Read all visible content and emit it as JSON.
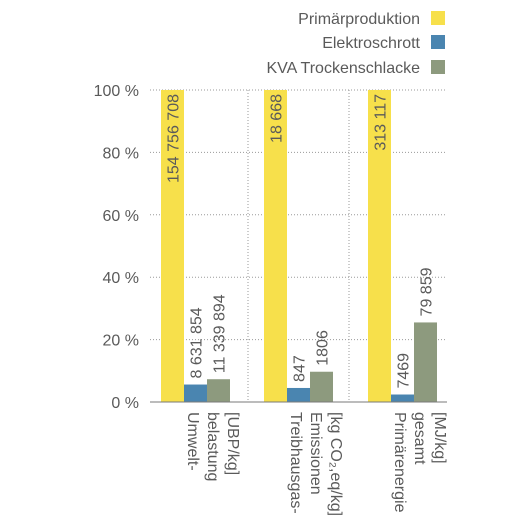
{
  "chart_data": {
    "type": "bar",
    "ylim": [
      0,
      100
    ],
    "yticks": [
      {
        "value": 0,
        "label": "0 %"
      },
      {
        "value": 20,
        "label": "20 %"
      },
      {
        "value": 40,
        "label": "40 %"
      },
      {
        "value": 60,
        "label": "60 %"
      },
      {
        "value": 80,
        "label": "80 %"
      },
      {
        "value": 100,
        "label": "100 %"
      }
    ],
    "grid": true,
    "legend_position": "top-right",
    "categories": [
      {
        "lines": [
          "Umwelt-",
          "belastung",
          "[UBP/kg]"
        ]
      },
      {
        "lines": [
          "Treibhausgas-",
          "Emissionen",
          "[kg CO₂,eq/kg]"
        ]
      },
      {
        "lines": [
          "Primärenergie",
          "gesamt",
          "[MJ/kg]"
        ]
      }
    ],
    "series": [
      {
        "name": "Primärproduktion",
        "color": "#f7e04b",
        "values": [
          100,
          100,
          100
        ],
        "labels": [
          "154 756 708",
          "18 668",
          "313 117"
        ]
      },
      {
        "name": "Elektroschrott",
        "color": "#4a85b0",
        "values": [
          5.6,
          4.5,
          2.4
        ],
        "labels": [
          "8 631 854",
          "847",
          "7469"
        ]
      },
      {
        "name": "KVA Trockenschlacke",
        "color": "#8d9a7e",
        "values": [
          7.3,
          9.7,
          25.5
        ],
        "labels": [
          "11 339 894",
          "1806",
          "79 859"
        ]
      }
    ]
  }
}
